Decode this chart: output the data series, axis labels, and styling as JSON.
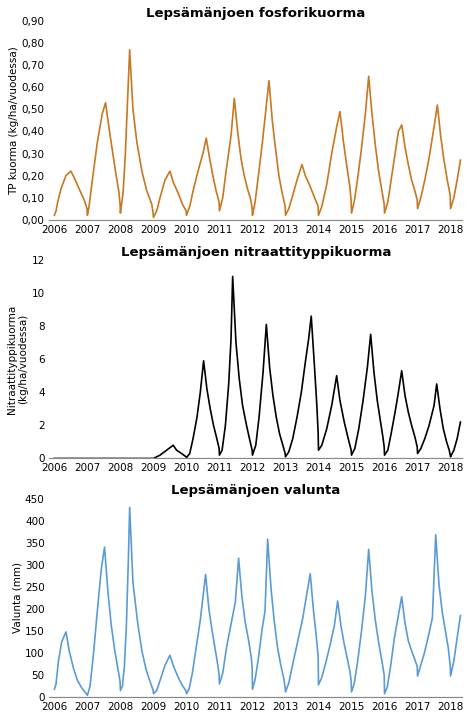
{
  "title1": "Lepsämänjoen fosforikuorma",
  "title2": "Lepsämänjoen nitraattityppikuorma",
  "title3": "Lepsämänjoen valunta",
  "ylabel1": "TP kuorma (kg/ha/vuodessa)",
  "ylabel2": "Nitraattityppikuorma\n(kg/ha/vuodessa)",
  "ylabel3": "Valunta (mm)",
  "color1": "#C87820",
  "color2": "#000000",
  "color3": "#5B9BD5",
  "ylim1": [
    0.0,
    0.9
  ],
  "ylim2": [
    0,
    12
  ],
  "ylim3": [
    0,
    450
  ],
  "yticks1": [
    0.0,
    0.1,
    0.2,
    0.3,
    0.4,
    0.5,
    0.6,
    0.7,
    0.8,
    0.9
  ],
  "yticks2": [
    0,
    2,
    4,
    6,
    8,
    10,
    12
  ],
  "yticks3": [
    0,
    50,
    100,
    150,
    200,
    250,
    300,
    350,
    400,
    450
  ],
  "xmin": 2005.85,
  "xmax": 2018.35,
  "xticks": [
    2006,
    2007,
    2008,
    2009,
    2010,
    2011,
    2012,
    2013,
    2014,
    2015,
    2016,
    2017,
    2018
  ],
  "tp_data": [
    [
      2006.0,
      0.02
    ],
    [
      2006.05,
      0.04
    ],
    [
      2006.1,
      0.08
    ],
    [
      2006.2,
      0.14
    ],
    [
      2006.35,
      0.2
    ],
    [
      2006.5,
      0.22
    ],
    [
      2006.6,
      0.19
    ],
    [
      2006.75,
      0.14
    ],
    [
      2006.9,
      0.09
    ],
    [
      2006.99,
      0.05
    ],
    [
      2007.0,
      0.02
    ],
    [
      2007.05,
      0.06
    ],
    [
      2007.15,
      0.18
    ],
    [
      2007.3,
      0.35
    ],
    [
      2007.45,
      0.48
    ],
    [
      2007.55,
      0.53
    ],
    [
      2007.65,
      0.42
    ],
    [
      2007.75,
      0.32
    ],
    [
      2007.85,
      0.22
    ],
    [
      2007.95,
      0.13
    ],
    [
      2007.99,
      0.07
    ],
    [
      2008.0,
      0.03
    ],
    [
      2008.08,
      0.12
    ],
    [
      2008.15,
      0.3
    ],
    [
      2008.22,
      0.55
    ],
    [
      2008.28,
      0.77
    ],
    [
      2008.38,
      0.5
    ],
    [
      2008.5,
      0.35
    ],
    [
      2008.65,
      0.22
    ],
    [
      2008.8,
      0.13
    ],
    [
      2008.95,
      0.07
    ],
    [
      2008.99,
      0.03
    ],
    [
      2009.0,
      0.01
    ],
    [
      2009.1,
      0.04
    ],
    [
      2009.2,
      0.1
    ],
    [
      2009.35,
      0.18
    ],
    [
      2009.5,
      0.22
    ],
    [
      2009.6,
      0.17
    ],
    [
      2009.75,
      0.12
    ],
    [
      2009.88,
      0.07
    ],
    [
      2009.99,
      0.04
    ],
    [
      2010.0,
      0.02
    ],
    [
      2010.1,
      0.06
    ],
    [
      2010.2,
      0.13
    ],
    [
      2010.35,
      0.22
    ],
    [
      2010.5,
      0.3
    ],
    [
      2010.6,
      0.37
    ],
    [
      2010.7,
      0.28
    ],
    [
      2010.8,
      0.2
    ],
    [
      2010.9,
      0.13
    ],
    [
      2010.99,
      0.08
    ],
    [
      2011.0,
      0.04
    ],
    [
      2011.1,
      0.1
    ],
    [
      2011.2,
      0.22
    ],
    [
      2011.35,
      0.38
    ],
    [
      2011.45,
      0.55
    ],
    [
      2011.55,
      0.4
    ],
    [
      2011.65,
      0.28
    ],
    [
      2011.75,
      0.2
    ],
    [
      2011.85,
      0.14
    ],
    [
      2011.95,
      0.09
    ],
    [
      2011.99,
      0.05
    ],
    [
      2012.0,
      0.02
    ],
    [
      2012.08,
      0.08
    ],
    [
      2012.18,
      0.2
    ],
    [
      2012.3,
      0.35
    ],
    [
      2012.42,
      0.52
    ],
    [
      2012.5,
      0.63
    ],
    [
      2012.6,
      0.45
    ],
    [
      2012.7,
      0.32
    ],
    [
      2012.8,
      0.2
    ],
    [
      2012.9,
      0.12
    ],
    [
      2012.99,
      0.06
    ],
    [
      2013.0,
      0.02
    ],
    [
      2013.1,
      0.05
    ],
    [
      2013.2,
      0.1
    ],
    [
      2013.35,
      0.18
    ],
    [
      2013.5,
      0.25
    ],
    [
      2013.6,
      0.2
    ],
    [
      2013.75,
      0.15
    ],
    [
      2013.88,
      0.1
    ],
    [
      2013.99,
      0.06
    ],
    [
      2014.0,
      0.02
    ],
    [
      2014.1,
      0.06
    ],
    [
      2014.25,
      0.16
    ],
    [
      2014.4,
      0.3
    ],
    [
      2014.55,
      0.42
    ],
    [
      2014.65,
      0.49
    ],
    [
      2014.75,
      0.36
    ],
    [
      2014.85,
      0.25
    ],
    [
      2014.95,
      0.15
    ],
    [
      2014.99,
      0.08
    ],
    [
      2015.0,
      0.03
    ],
    [
      2015.08,
      0.08
    ],
    [
      2015.18,
      0.18
    ],
    [
      2015.3,
      0.32
    ],
    [
      2015.42,
      0.48
    ],
    [
      2015.52,
      0.65
    ],
    [
      2015.62,
      0.48
    ],
    [
      2015.72,
      0.34
    ],
    [
      2015.82,
      0.22
    ],
    [
      2015.92,
      0.13
    ],
    [
      2015.99,
      0.07
    ],
    [
      2016.0,
      0.03
    ],
    [
      2016.1,
      0.08
    ],
    [
      2016.2,
      0.18
    ],
    [
      2016.32,
      0.3
    ],
    [
      2016.42,
      0.4
    ],
    [
      2016.52,
      0.43
    ],
    [
      2016.62,
      0.33
    ],
    [
      2016.72,
      0.25
    ],
    [
      2016.82,
      0.18
    ],
    [
      2016.92,
      0.13
    ],
    [
      2016.99,
      0.09
    ],
    [
      2017.0,
      0.05
    ],
    [
      2017.1,
      0.1
    ],
    [
      2017.22,
      0.18
    ],
    [
      2017.35,
      0.28
    ],
    [
      2017.5,
      0.42
    ],
    [
      2017.6,
      0.52
    ],
    [
      2017.7,
      0.38
    ],
    [
      2017.8,
      0.27
    ],
    [
      2017.9,
      0.18
    ],
    [
      2017.99,
      0.11
    ],
    [
      2018.0,
      0.05
    ],
    [
      2018.1,
      0.1
    ],
    [
      2018.2,
      0.18
    ],
    [
      2018.3,
      0.27
    ]
  ],
  "no3_data": [
    [
      2006.0,
      0.0
    ],
    [
      2006.5,
      0.0
    ],
    [
      2007.0,
      0.0
    ],
    [
      2007.5,
      0.0
    ],
    [
      2008.0,
      0.0
    ],
    [
      2008.5,
      0.0
    ],
    [
      2009.0,
      0.0
    ],
    [
      2009.05,
      0.05
    ],
    [
      2009.2,
      0.2
    ],
    [
      2009.4,
      0.5
    ],
    [
      2009.6,
      0.8
    ],
    [
      2009.7,
      0.5
    ],
    [
      2009.85,
      0.3
    ],
    [
      2009.99,
      0.1
    ],
    [
      2010.0,
      0.05
    ],
    [
      2010.1,
      0.3
    ],
    [
      2010.2,
      1.2
    ],
    [
      2010.32,
      2.5
    ],
    [
      2010.42,
      4.0
    ],
    [
      2010.52,
      5.9
    ],
    [
      2010.62,
      4.2
    ],
    [
      2010.72,
      3.0
    ],
    [
      2010.82,
      2.0
    ],
    [
      2010.92,
      1.2
    ],
    [
      2010.99,
      0.6
    ],
    [
      2011.0,
      0.2
    ],
    [
      2011.08,
      0.5
    ],
    [
      2011.18,
      2.0
    ],
    [
      2011.28,
      4.5
    ],
    [
      2011.35,
      7.2
    ],
    [
      2011.4,
      11.0
    ],
    [
      2011.5,
      7.0
    ],
    [
      2011.6,
      4.8
    ],
    [
      2011.7,
      3.2
    ],
    [
      2011.82,
      2.0
    ],
    [
      2011.92,
      1.1
    ],
    [
      2011.99,
      0.5
    ],
    [
      2012.0,
      0.2
    ],
    [
      2012.1,
      0.8
    ],
    [
      2012.2,
      2.5
    ],
    [
      2012.32,
      5.2
    ],
    [
      2012.42,
      8.1
    ],
    [
      2012.52,
      5.5
    ],
    [
      2012.62,
      3.8
    ],
    [
      2012.72,
      2.5
    ],
    [
      2012.82,
      1.5
    ],
    [
      2012.92,
      0.8
    ],
    [
      2012.99,
      0.3
    ],
    [
      2013.0,
      0.1
    ],
    [
      2013.1,
      0.4
    ],
    [
      2013.22,
      1.2
    ],
    [
      2013.35,
      2.5
    ],
    [
      2013.48,
      4.0
    ],
    [
      2013.6,
      5.8
    ],
    [
      2013.7,
      7.2
    ],
    [
      2013.78,
      8.6
    ],
    [
      2013.88,
      5.5
    ],
    [
      2013.95,
      3.2
    ],
    [
      2013.99,
      1.5
    ],
    [
      2014.0,
      0.5
    ],
    [
      2014.1,
      0.8
    ],
    [
      2014.25,
      1.8
    ],
    [
      2014.4,
      3.2
    ],
    [
      2014.55,
      5.0
    ],
    [
      2014.65,
      3.5
    ],
    [
      2014.78,
      2.2
    ],
    [
      2014.9,
      1.2
    ],
    [
      2014.99,
      0.5
    ],
    [
      2015.0,
      0.2
    ],
    [
      2015.1,
      0.6
    ],
    [
      2015.22,
      1.8
    ],
    [
      2015.35,
      3.5
    ],
    [
      2015.48,
      5.5
    ],
    [
      2015.58,
      7.5
    ],
    [
      2015.68,
      5.2
    ],
    [
      2015.78,
      3.5
    ],
    [
      2015.88,
      2.2
    ],
    [
      2015.95,
      1.3
    ],
    [
      2015.99,
      0.7
    ],
    [
      2016.0,
      0.2
    ],
    [
      2016.1,
      0.5
    ],
    [
      2016.2,
      1.5
    ],
    [
      2016.32,
      2.8
    ],
    [
      2016.42,
      4.0
    ],
    [
      2016.52,
      5.3
    ],
    [
      2016.62,
      3.8
    ],
    [
      2016.72,
      2.8
    ],
    [
      2016.82,
      2.0
    ],
    [
      2016.92,
      1.3
    ],
    [
      2016.99,
      0.7
    ],
    [
      2017.0,
      0.3
    ],
    [
      2017.1,
      0.6
    ],
    [
      2017.22,
      1.2
    ],
    [
      2017.35,
      2.0
    ],
    [
      2017.5,
      3.2
    ],
    [
      2017.58,
      4.5
    ],
    [
      2017.68,
      3.0
    ],
    [
      2017.78,
      1.8
    ],
    [
      2017.88,
      1.0
    ],
    [
      2017.96,
      0.5
    ],
    [
      2017.99,
      0.2
    ],
    [
      2018.0,
      0.1
    ],
    [
      2018.1,
      0.5
    ],
    [
      2018.2,
      1.2
    ],
    [
      2018.3,
      2.2
    ]
  ],
  "valunta_data": [
    [
      2006.0,
      18
    ],
    [
      2006.05,
      30
    ],
    [
      2006.12,
      80
    ],
    [
      2006.22,
      125
    ],
    [
      2006.35,
      148
    ],
    [
      2006.45,
      105
    ],
    [
      2006.58,
      65
    ],
    [
      2006.7,
      38
    ],
    [
      2006.82,
      22
    ],
    [
      2006.92,
      12
    ],
    [
      2006.99,
      6
    ],
    [
      2007.0,
      4
    ],
    [
      2007.08,
      25
    ],
    [
      2007.18,
      95
    ],
    [
      2007.3,
      195
    ],
    [
      2007.42,
      290
    ],
    [
      2007.52,
      340
    ],
    [
      2007.62,
      240
    ],
    [
      2007.72,
      165
    ],
    [
      2007.82,
      110
    ],
    [
      2007.92,
      65
    ],
    [
      2007.99,
      35
    ],
    [
      2008.0,
      15
    ],
    [
      2008.06,
      25
    ],
    [
      2008.12,
      70
    ],
    [
      2008.18,
      160
    ],
    [
      2008.24,
      310
    ],
    [
      2008.28,
      430
    ],
    [
      2008.38,
      260
    ],
    [
      2008.52,
      170
    ],
    [
      2008.65,
      105
    ],
    [
      2008.78,
      62
    ],
    [
      2008.9,
      35
    ],
    [
      2008.99,
      16
    ],
    [
      2009.0,
      8
    ],
    [
      2009.1,
      15
    ],
    [
      2009.22,
      42
    ],
    [
      2009.35,
      72
    ],
    [
      2009.5,
      95
    ],
    [
      2009.62,
      68
    ],
    [
      2009.75,
      45
    ],
    [
      2009.88,
      26
    ],
    [
      2009.99,
      14
    ],
    [
      2010.0,
      8
    ],
    [
      2010.08,
      18
    ],
    [
      2010.18,
      55
    ],
    [
      2010.3,
      115
    ],
    [
      2010.42,
      175
    ],
    [
      2010.52,
      240
    ],
    [
      2010.58,
      278
    ],
    [
      2010.68,
      200
    ],
    [
      2010.78,
      150
    ],
    [
      2010.88,
      105
    ],
    [
      2010.96,
      68
    ],
    [
      2010.99,
      48
    ],
    [
      2011.0,
      30
    ],
    [
      2011.1,
      55
    ],
    [
      2011.22,
      115
    ],
    [
      2011.35,
      165
    ],
    [
      2011.48,
      215
    ],
    [
      2011.58,
      315
    ],
    [
      2011.68,
      228
    ],
    [
      2011.78,
      170
    ],
    [
      2011.88,
      130
    ],
    [
      2011.96,
      92
    ],
    [
      2011.99,
      68
    ],
    [
      2012.0,
      18
    ],
    [
      2012.08,
      40
    ],
    [
      2012.18,
      88
    ],
    [
      2012.28,
      148
    ],
    [
      2012.38,
      195
    ],
    [
      2012.46,
      358
    ],
    [
      2012.56,
      248
    ],
    [
      2012.66,
      172
    ],
    [
      2012.76,
      112
    ],
    [
      2012.86,
      72
    ],
    [
      2012.95,
      42
    ],
    [
      2012.99,
      22
    ],
    [
      2013.0,
      12
    ],
    [
      2013.1,
      32
    ],
    [
      2013.22,
      75
    ],
    [
      2013.38,
      130
    ],
    [
      2013.52,
      178
    ],
    [
      2013.65,
      235
    ],
    [
      2013.75,
      280
    ],
    [
      2013.85,
      195
    ],
    [
      2013.93,
      140
    ],
    [
      2013.99,
      92
    ],
    [
      2014.0,
      28
    ],
    [
      2014.1,
      45
    ],
    [
      2014.22,
      78
    ],
    [
      2014.35,
      118
    ],
    [
      2014.48,
      162
    ],
    [
      2014.58,
      218
    ],
    [
      2014.68,
      162
    ],
    [
      2014.78,
      120
    ],
    [
      2014.88,
      85
    ],
    [
      2014.96,
      55
    ],
    [
      2014.99,
      35
    ],
    [
      2015.0,
      12
    ],
    [
      2015.08,
      30
    ],
    [
      2015.18,
      78
    ],
    [
      2015.3,
      148
    ],
    [
      2015.42,
      230
    ],
    [
      2015.52,
      335
    ],
    [
      2015.62,
      240
    ],
    [
      2015.72,
      175
    ],
    [
      2015.82,
      125
    ],
    [
      2015.92,
      82
    ],
    [
      2015.99,
      50
    ],
    [
      2016.0,
      8
    ],
    [
      2016.08,
      22
    ],
    [
      2016.18,
      68
    ],
    [
      2016.3,
      135
    ],
    [
      2016.42,
      185
    ],
    [
      2016.52,
      228
    ],
    [
      2016.62,
      168
    ],
    [
      2016.72,
      128
    ],
    [
      2016.82,
      105
    ],
    [
      2016.92,
      85
    ],
    [
      2016.99,
      70
    ],
    [
      2017.0,
      48
    ],
    [
      2017.08,
      68
    ],
    [
      2017.2,
      98
    ],
    [
      2017.32,
      135
    ],
    [
      2017.45,
      180
    ],
    [
      2017.55,
      368
    ],
    [
      2017.65,
      255
    ],
    [
      2017.75,
      192
    ],
    [
      2017.85,
      148
    ],
    [
      2017.93,
      112
    ],
    [
      2017.99,
      72
    ],
    [
      2018.0,
      48
    ],
    [
      2018.1,
      82
    ],
    [
      2018.2,
      135
    ],
    [
      2018.3,
      185
    ]
  ]
}
